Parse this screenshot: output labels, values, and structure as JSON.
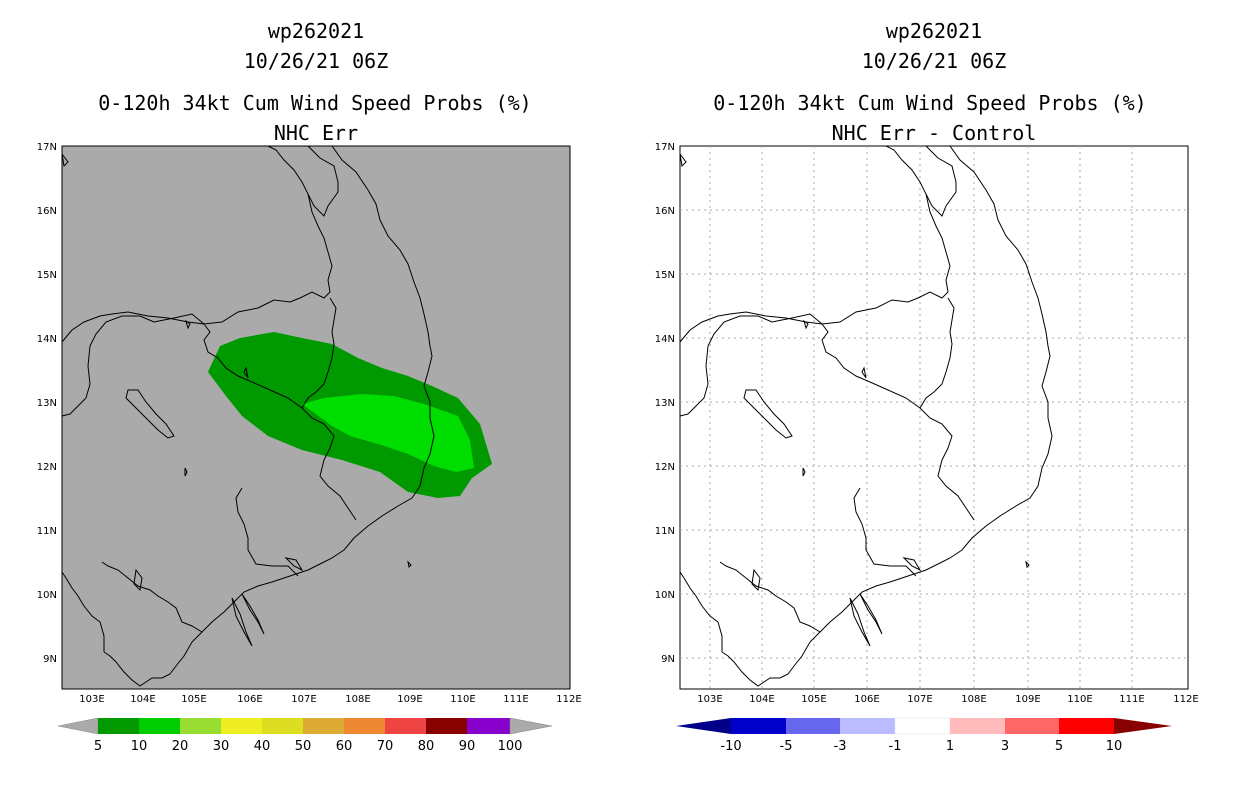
{
  "left_panel": {
    "title1": "wp262021",
    "title2": "10/26/21 06Z",
    "title3": "0-120h 34kt Cum Wind Speed Probs (%)",
    "title4": "NHC Err",
    "background": "#aaaaaa",
    "lat_labels": [
      "17N",
      "16N",
      "15N",
      "14N",
      "13N",
      "12N",
      "11N",
      "10N",
      "9N"
    ],
    "lon_labels": [
      "103E",
      "104E",
      "105E",
      "106E",
      "107E",
      "108E",
      "109E",
      "110E",
      "111E",
      "112E"
    ],
    "colorbar": {
      "colors": [
        "#009900",
        "#00cc00",
        "#99dd33",
        "#eeee22",
        "#dddd22",
        "#ddaa33",
        "#ee8833",
        "#ee4444",
        "#880000",
        "#8800cc"
      ],
      "labels": [
        "5",
        "10",
        "20",
        "30",
        "40",
        "50",
        "60",
        "70",
        "80",
        "90",
        "100"
      ],
      "end_color": "#aaaaaa"
    },
    "prob_colors": {
      "outer": "#009900",
      "inner": "#00dd00"
    }
  },
  "right_panel": {
    "title1": "wp262021",
    "title2": "10/26/21 06Z",
    "title3": "0-120h 34kt Cum Wind Speed Probs (%)",
    "title4": "NHC Err - Control",
    "background": "#ffffff",
    "lat_labels": [
      "17N",
      "16N",
      "15N",
      "14N",
      "13N",
      "12N",
      "11N",
      "10N",
      "9N"
    ],
    "lon_labels": [
      "103E",
      "104E",
      "105E",
      "106E",
      "107E",
      "108E",
      "109E",
      "110E",
      "111E",
      "112E"
    ],
    "colorbar": {
      "colors": [
        "#0000cc",
        "#6666ee",
        "#bbbbff",
        "#ffffff",
        "#ffbbbb",
        "#ff6666",
        "#ff0000"
      ],
      "labels": [
        "-10",
        "-5",
        "-3",
        "-1",
        "1",
        "3",
        "5",
        "10"
      ],
      "left_end": "#000088",
      "right_end": "#880000"
    }
  }
}
